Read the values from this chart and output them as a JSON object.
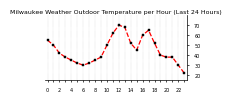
{
  "title": "Milwaukee Weather Outdoor Temperature per Hour (Last 24 Hours)",
  "hours": [
    0,
    1,
    2,
    3,
    4,
    5,
    6,
    7,
    8,
    9,
    10,
    11,
    12,
    13,
    14,
    15,
    16,
    17,
    18,
    19,
    20,
    21,
    22,
    23
  ],
  "temps": [
    55,
    50,
    42,
    38,
    35,
    32,
    30,
    32,
    35,
    38,
    50,
    62,
    70,
    68,
    52,
    45,
    60,
    65,
    52,
    40,
    38,
    38,
    30,
    22
  ],
  "line_color": "#ff0000",
  "marker_color": "#000000",
  "bg_color": "#ffffff",
  "grid_color": "#888888",
  "ylim": [
    15,
    80
  ],
  "yticks": [
    20,
    30,
    40,
    50,
    60,
    70
  ],
  "ytick_labels": [
    "20",
    "30",
    "40",
    "50",
    "60",
    "70"
  ],
  "xtick_step": 2,
  "title_fontsize": 4.5,
  "tick_fontsize": 3.5,
  "line_width": 0.9,
  "marker_size": 1.8
}
